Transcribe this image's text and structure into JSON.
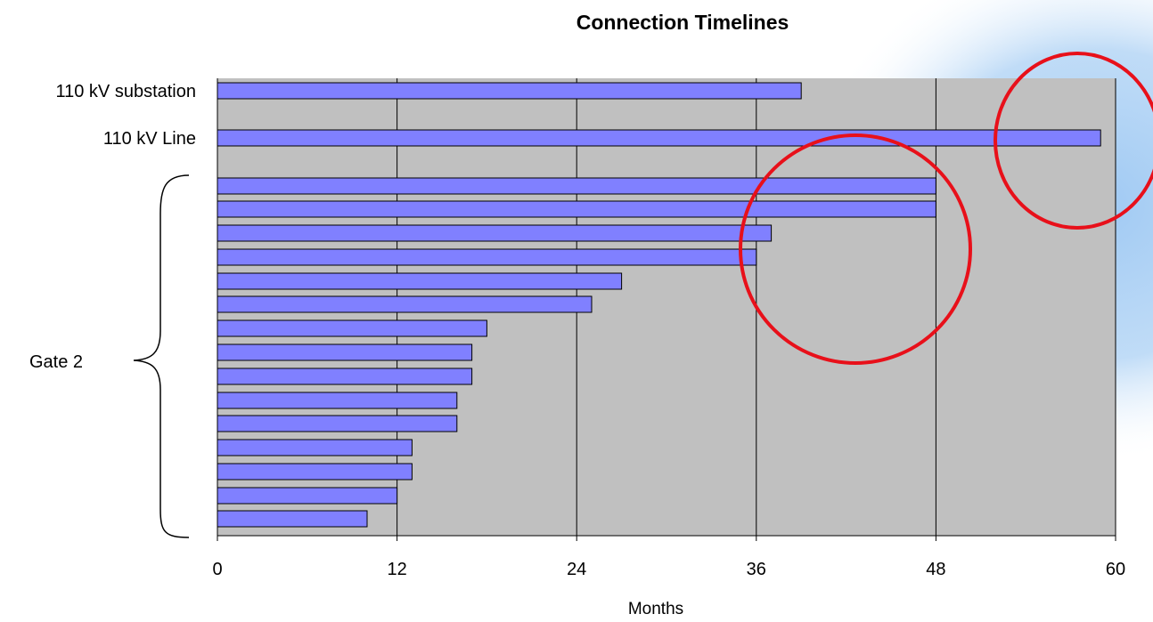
{
  "chart_data": {
    "type": "bar",
    "orientation": "horizontal",
    "title": "Connection Timelines",
    "xlabel": "Months",
    "xlim": [
      0,
      60
    ],
    "xticks": [
      0,
      12,
      24,
      36,
      48,
      60
    ],
    "grid": "vertical",
    "categories": [
      "110 kV substation",
      "110 kV Line",
      "",
      "",
      "",
      "",
      "",
      "",
      "",
      "",
      "",
      "",
      "",
      "",
      "",
      "",
      ""
    ],
    "values": [
      39,
      59,
      48,
      48,
      37,
      36,
      27,
      25,
      18,
      17,
      17,
      16,
      16,
      13,
      13,
      12,
      10
    ],
    "group_label": "Gate 2",
    "colors": {
      "bar_fill": "#8080ff",
      "bar_stroke": "#000000",
      "plot_bg": "#c0c0c0",
      "gridline": "#000000",
      "annotation": "#e8101a",
      "glow": "#a6cdf5"
    },
    "annotations": [
      "circle",
      "circle"
    ]
  }
}
